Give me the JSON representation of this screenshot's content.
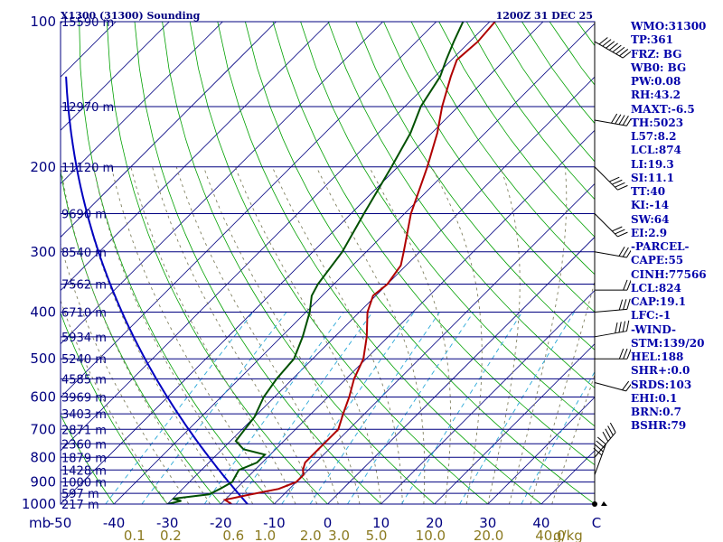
{
  "chart_data": {
    "type": "line",
    "title_left": "X1300 (31300) Sounding",
    "title_right": "1200Z 31 DEC 25",
    "x_axis": {
      "label": "C",
      "min": -50,
      "max": 50,
      "ticks": [
        {
          "v": -50,
          "t": "-50"
        },
        {
          "v": -40,
          "t": "-40"
        },
        {
          "v": -30,
          "t": "-30"
        },
        {
          "v": -20,
          "t": "-20"
        },
        {
          "v": -10,
          "t": "-10"
        },
        {
          "v": 0,
          "t": "0"
        },
        {
          "v": 10,
          "t": "10"
        },
        {
          "v": 20,
          "t": "20"
        },
        {
          "v": 30,
          "t": "30"
        },
        {
          "v": 40,
          "t": "40"
        }
      ]
    },
    "y_axis": {
      "label": "mb",
      "scale": "log",
      "min": 100,
      "max": 1000,
      "ticks": [
        {
          "v": 100,
          "t": "100"
        },
        {
          "v": 200,
          "t": "200"
        },
        {
          "v": 300,
          "t": "300"
        },
        {
          "v": 400,
          "t": "400"
        },
        {
          "v": 500,
          "t": "500"
        },
        {
          "v": 600,
          "t": "600"
        },
        {
          "v": 700,
          "t": "700"
        },
        {
          "v": 800,
          "t": "800"
        },
        {
          "v": 900,
          "t": "900"
        },
        {
          "v": 1000,
          "t": "1000"
        }
      ]
    },
    "mixing_ratio_labels": {
      "unit": "g/kg",
      "values": [
        "0.1",
        "0.2",
        "0.6",
        "1.0",
        "2.0",
        "3.0",
        "5.0",
        "10.0",
        "20.0",
        "40.0"
      ]
    },
    "height_labels": [
      {
        "p": 100,
        "t": "15590 m"
      },
      {
        "p": 150,
        "t": "12970 m"
      },
      {
        "p": 200,
        "t": "11120 m"
      },
      {
        "p": 250,
        "t": "9690 m"
      },
      {
        "p": 300,
        "t": "8540 m"
      },
      {
        "p": 350,
        "t": "7562 m"
      },
      {
        "p": 400,
        "t": "6710 m"
      },
      {
        "p": 450,
        "t": "5934 m"
      },
      {
        "p": 500,
        "t": "5240 m"
      },
      {
        "p": 550,
        "t": "4585 m"
      },
      {
        "p": 600,
        "t": "3969 m"
      },
      {
        "p": 650,
        "t": "3403 m"
      },
      {
        "p": 700,
        "t": "2871 m"
      },
      {
        "p": 750,
        "t": "2360 m"
      },
      {
        "p": 800,
        "t": "1879 m"
      },
      {
        "p": 850,
        "t": "1428 m"
      },
      {
        "p": 900,
        "t": "1000 m"
      },
      {
        "p": 950,
        "t": "597 m"
      },
      {
        "p": 1000,
        "t": "217 m"
      }
    ],
    "series": [
      {
        "name": "Temperature",
        "color": "#b00000",
        "points": [
          {
            "p": 1000,
            "t": -18
          },
          {
            "p": 980,
            "t": -20
          },
          {
            "p": 960,
            "t": -17
          },
          {
            "p": 930,
            "t": -12
          },
          {
            "p": 900,
            "t": -10
          },
          {
            "p": 870,
            "t": -10
          },
          {
            "p": 850,
            "t": -11
          },
          {
            "p": 820,
            "t": -12
          },
          {
            "p": 800,
            "t": -12
          },
          {
            "p": 750,
            "t": -12
          },
          {
            "p": 700,
            "t": -12
          },
          {
            "p": 650,
            "t": -14
          },
          {
            "p": 600,
            "t": -16
          },
          {
            "p": 550,
            "t": -18.5
          },
          {
            "p": 500,
            "t": -20.5
          },
          {
            "p": 450,
            "t": -24
          },
          {
            "p": 400,
            "t": -28.5
          },
          {
            "p": 370,
            "t": -30.5
          },
          {
            "p": 350,
            "t": -30
          },
          {
            "p": 320,
            "t": -31
          },
          {
            "p": 300,
            "t": -33
          },
          {
            "p": 250,
            "t": -38.8
          },
          {
            "p": 200,
            "t": -44.5
          },
          {
            "p": 170,
            "t": -49
          },
          {
            "p": 150,
            "t": -53
          },
          {
            "p": 130,
            "t": -57
          },
          {
            "p": 120,
            "t": -59
          },
          {
            "p": 110,
            "t": -58.5
          },
          {
            "p": 100,
            "t": -59
          }
        ]
      },
      {
        "name": "Dewpoint",
        "color": "#005000",
        "points": [
          {
            "p": 1000,
            "t": -30
          },
          {
            "p": 985,
            "t": -28
          },
          {
            "p": 975,
            "t": -30
          },
          {
            "p": 955,
            "t": -24
          },
          {
            "p": 930,
            "t": -23
          },
          {
            "p": 900,
            "t": -22
          },
          {
            "p": 850,
            "t": -23
          },
          {
            "p": 820,
            "t": -21
          },
          {
            "p": 790,
            "t": -21
          },
          {
            "p": 770,
            "t": -26
          },
          {
            "p": 740,
            "t": -29
          },
          {
            "p": 700,
            "t": -29.5
          },
          {
            "p": 660,
            "t": -30
          },
          {
            "p": 600,
            "t": -32
          },
          {
            "p": 550,
            "t": -33
          },
          {
            "p": 500,
            "t": -33.5
          },
          {
            "p": 450,
            "t": -36
          },
          {
            "p": 400,
            "t": -39.3
          },
          {
            "p": 370,
            "t": -42
          },
          {
            "p": 350,
            "t": -43
          },
          {
            "p": 300,
            "t": -44.5
          },
          {
            "p": 250,
            "t": -47.6
          },
          {
            "p": 200,
            "t": -51.2
          },
          {
            "p": 170,
            "t": -54
          },
          {
            "p": 150,
            "t": -57
          },
          {
            "p": 130,
            "t": -59
          },
          {
            "p": 120,
            "t": -61
          },
          {
            "p": 110,
            "t": -63
          },
          {
            "p": 100,
            "t": -65
          }
        ]
      }
    ]
  },
  "indices": [
    "WMO:31300",
    "TP:361",
    "FRZ: BG",
    "WB0: BG",
    "PW:0.08",
    "RH:43.2",
    "MAXT:-6.5",
    "TH:5023",
    "L57:8.2",
    "LCL:874",
    "LI:19.3",
    "SI:11.1",
    "TT:40",
    "KI:-14",
    "SW:64",
    "EI:2.9",
    "-PARCEL-",
    "CAPE:55",
    "CINH:77566",
    "LCL:824",
    "CAP:19.1",
    "LFC:-1",
    "-WIND-",
    "STM:139/20",
    "HEL:188",
    "SHR+:0.0",
    "SRDS:103",
    "EHI:0.1",
    "BRN:0.7",
    "BSHR:79"
  ]
}
